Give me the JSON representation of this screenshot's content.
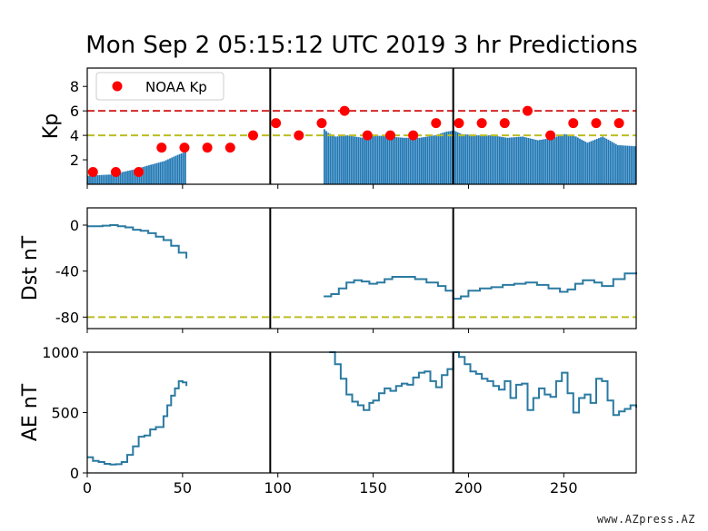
{
  "title": "Mon Sep 2  05:15:12 UTC 2019 3 hr Predictions",
  "watermark": "www.AZpress.AZ",
  "colors": {
    "bar": "#1f77b4",
    "line": "#2a7aa1",
    "noaa": "#ff0000",
    "red_dash": "#d62728",
    "yellow_dash": "#bcbd22",
    "axis": "#000000"
  },
  "chart_data": [
    {
      "id": "kp",
      "type": "bar",
      "ylabel": "Kp",
      "xlim": [
        0,
        288
      ],
      "ylim": [
        0,
        9.5
      ],
      "yticks": [
        {
          "v": 2,
          "label": "2"
        },
        {
          "v": 4,
          "label": "4"
        },
        {
          "v": 6,
          "label": "6"
        },
        {
          "v": 8,
          "label": "8"
        }
      ],
      "vlines": [
        96,
        192
      ],
      "hlines": [
        {
          "y": 6,
          "style": "red"
        },
        {
          "y": 4,
          "style": "yellow"
        }
      ],
      "legend": {
        "label": "NOAA Kp",
        "position": "top-left"
      },
      "bar_segments": [
        {
          "x": [
            0,
            12,
            24,
            33,
            40,
            47,
            52
          ],
          "y": [
            0.7,
            0.8,
            1.2,
            1.6,
            1.9,
            2.4,
            2.7
          ]
        },
        {
          "x": [
            124,
            126,
            130,
            136,
            144,
            150,
            158,
            166,
            174,
            182,
            188,
            192,
            196,
            204,
            212,
            220,
            228,
            236,
            244,
            250,
            256,
            262,
            270,
            278,
            288
          ],
          "y": [
            4.5,
            4.2,
            3.9,
            4.0,
            3.8,
            4.0,
            3.9,
            3.8,
            3.8,
            4.0,
            4.3,
            4.4,
            4.1,
            4.0,
            4.0,
            3.8,
            3.9,
            3.6,
            3.8,
            4.1,
            3.9,
            3.4,
            3.9,
            3.2,
            3.1
          ]
        }
      ],
      "noaa_kp": {
        "x": [
          3,
          15,
          27,
          39,
          51,
          63,
          75,
          87,
          99,
          111,
          123,
          135,
          147,
          159,
          171,
          183,
          195,
          207,
          219,
          231,
          243,
          255,
          267,
          279
        ],
        "y": [
          1,
          1,
          1,
          3,
          3,
          3,
          3,
          4,
          5,
          4,
          5,
          6,
          4,
          4,
          4,
          5,
          5,
          5,
          5,
          6,
          4,
          5,
          5,
          5
        ]
      }
    },
    {
      "id": "dst",
      "type": "line",
      "ylabel": "Dst nT",
      "xlim": [
        0,
        288
      ],
      "ylim": [
        -90,
        15
      ],
      "yticks": [
        {
          "v": 0,
          "label": "0"
        },
        {
          "v": -40,
          "label": "-40"
        },
        {
          "v": -80,
          "label": "-80"
        }
      ],
      "vlines": [
        96,
        192
      ],
      "hlines": [
        {
          "y": -80,
          "style": "yellow"
        }
      ],
      "series": [
        {
          "x": [
            0,
            4,
            8,
            12,
            16,
            20,
            24,
            28,
            32,
            36,
            40,
            44,
            48,
            52
          ],
          "y": [
            -1,
            -1,
            -0.5,
            0,
            -1,
            -2,
            -4,
            -5,
            -7,
            -10,
            -13,
            -18,
            -24,
            -29
          ]
        },
        {
          "x": [
            124,
            128,
            132,
            136,
            140,
            144,
            148,
            152,
            156,
            160,
            166,
            172,
            178,
            184,
            188,
            192,
            196,
            200,
            206,
            212,
            218,
            224,
            230,
            236,
            242,
            248,
            252,
            256,
            260,
            266,
            270,
            276,
            282,
            288
          ],
          "y": [
            -62,
            -60,
            -55,
            -50,
            -48,
            -49,
            -51,
            -50,
            -47,
            -45,
            -45,
            -47,
            -50,
            -53,
            -57,
            -64,
            -62,
            -57,
            -55,
            -54,
            -52,
            -51,
            -50,
            -52,
            -55,
            -58,
            -56,
            -51,
            -48,
            -50,
            -53,
            -47,
            -42,
            -41
          ]
        }
      ]
    },
    {
      "id": "ae",
      "type": "line",
      "ylabel": "AE nT",
      "xlim": [
        0,
        288
      ],
      "ylim": [
        0,
        1000
      ],
      "xlabel": "",
      "xticks": [
        {
          "v": 0,
          "label": "0"
        },
        {
          "v": 50,
          "label": "50"
        },
        {
          "v": 100,
          "label": "100"
        },
        {
          "v": 150,
          "label": "150"
        },
        {
          "v": 200,
          "label": "200"
        },
        {
          "v": 250,
          "label": "250"
        }
      ],
      "yticks": [
        {
          "v": 0,
          "label": "0"
        },
        {
          "v": 500,
          "label": "500"
        },
        {
          "v": 1000,
          "label": "1000"
        }
      ],
      "vlines": [
        96,
        192
      ],
      "series": [
        {
          "x": [
            0,
            3,
            6,
            9,
            12,
            15,
            18,
            21,
            24,
            27,
            30,
            33,
            36,
            40,
            42,
            44,
            46,
            48,
            50,
            52
          ],
          "y": [
            130,
            100,
            90,
            75,
            70,
            72,
            90,
            150,
            220,
            300,
            310,
            360,
            380,
            470,
            560,
            640,
            700,
            760,
            750,
            720
          ]
        },
        {
          "x": [
            127,
            130,
            133,
            136,
            139,
            142,
            145,
            148,
            150,
            153,
            156,
            159,
            162,
            165,
            168,
            171,
            174,
            177,
            180,
            183,
            186,
            189,
            192,
            195,
            198,
            201,
            204,
            207,
            210,
            213,
            216,
            219,
            222,
            225,
            228,
            231,
            234,
            237,
            240,
            243,
            246,
            249,
            252,
            255,
            258,
            261,
            264,
            267,
            270,
            273,
            276,
            279,
            282,
            285,
            288
          ],
          "y": [
            1000,
            900,
            780,
            650,
            590,
            560,
            520,
            580,
            600,
            660,
            700,
            680,
            720,
            740,
            730,
            790,
            830,
            840,
            760,
            710,
            810,
            860,
            1000,
            960,
            900,
            840,
            820,
            780,
            760,
            720,
            690,
            760,
            620,
            730,
            740,
            520,
            620,
            700,
            650,
            630,
            760,
            830,
            660,
            500,
            620,
            650,
            580,
            780,
            760,
            600,
            480,
            510,
            530,
            560,
            540
          ]
        }
      ]
    }
  ]
}
